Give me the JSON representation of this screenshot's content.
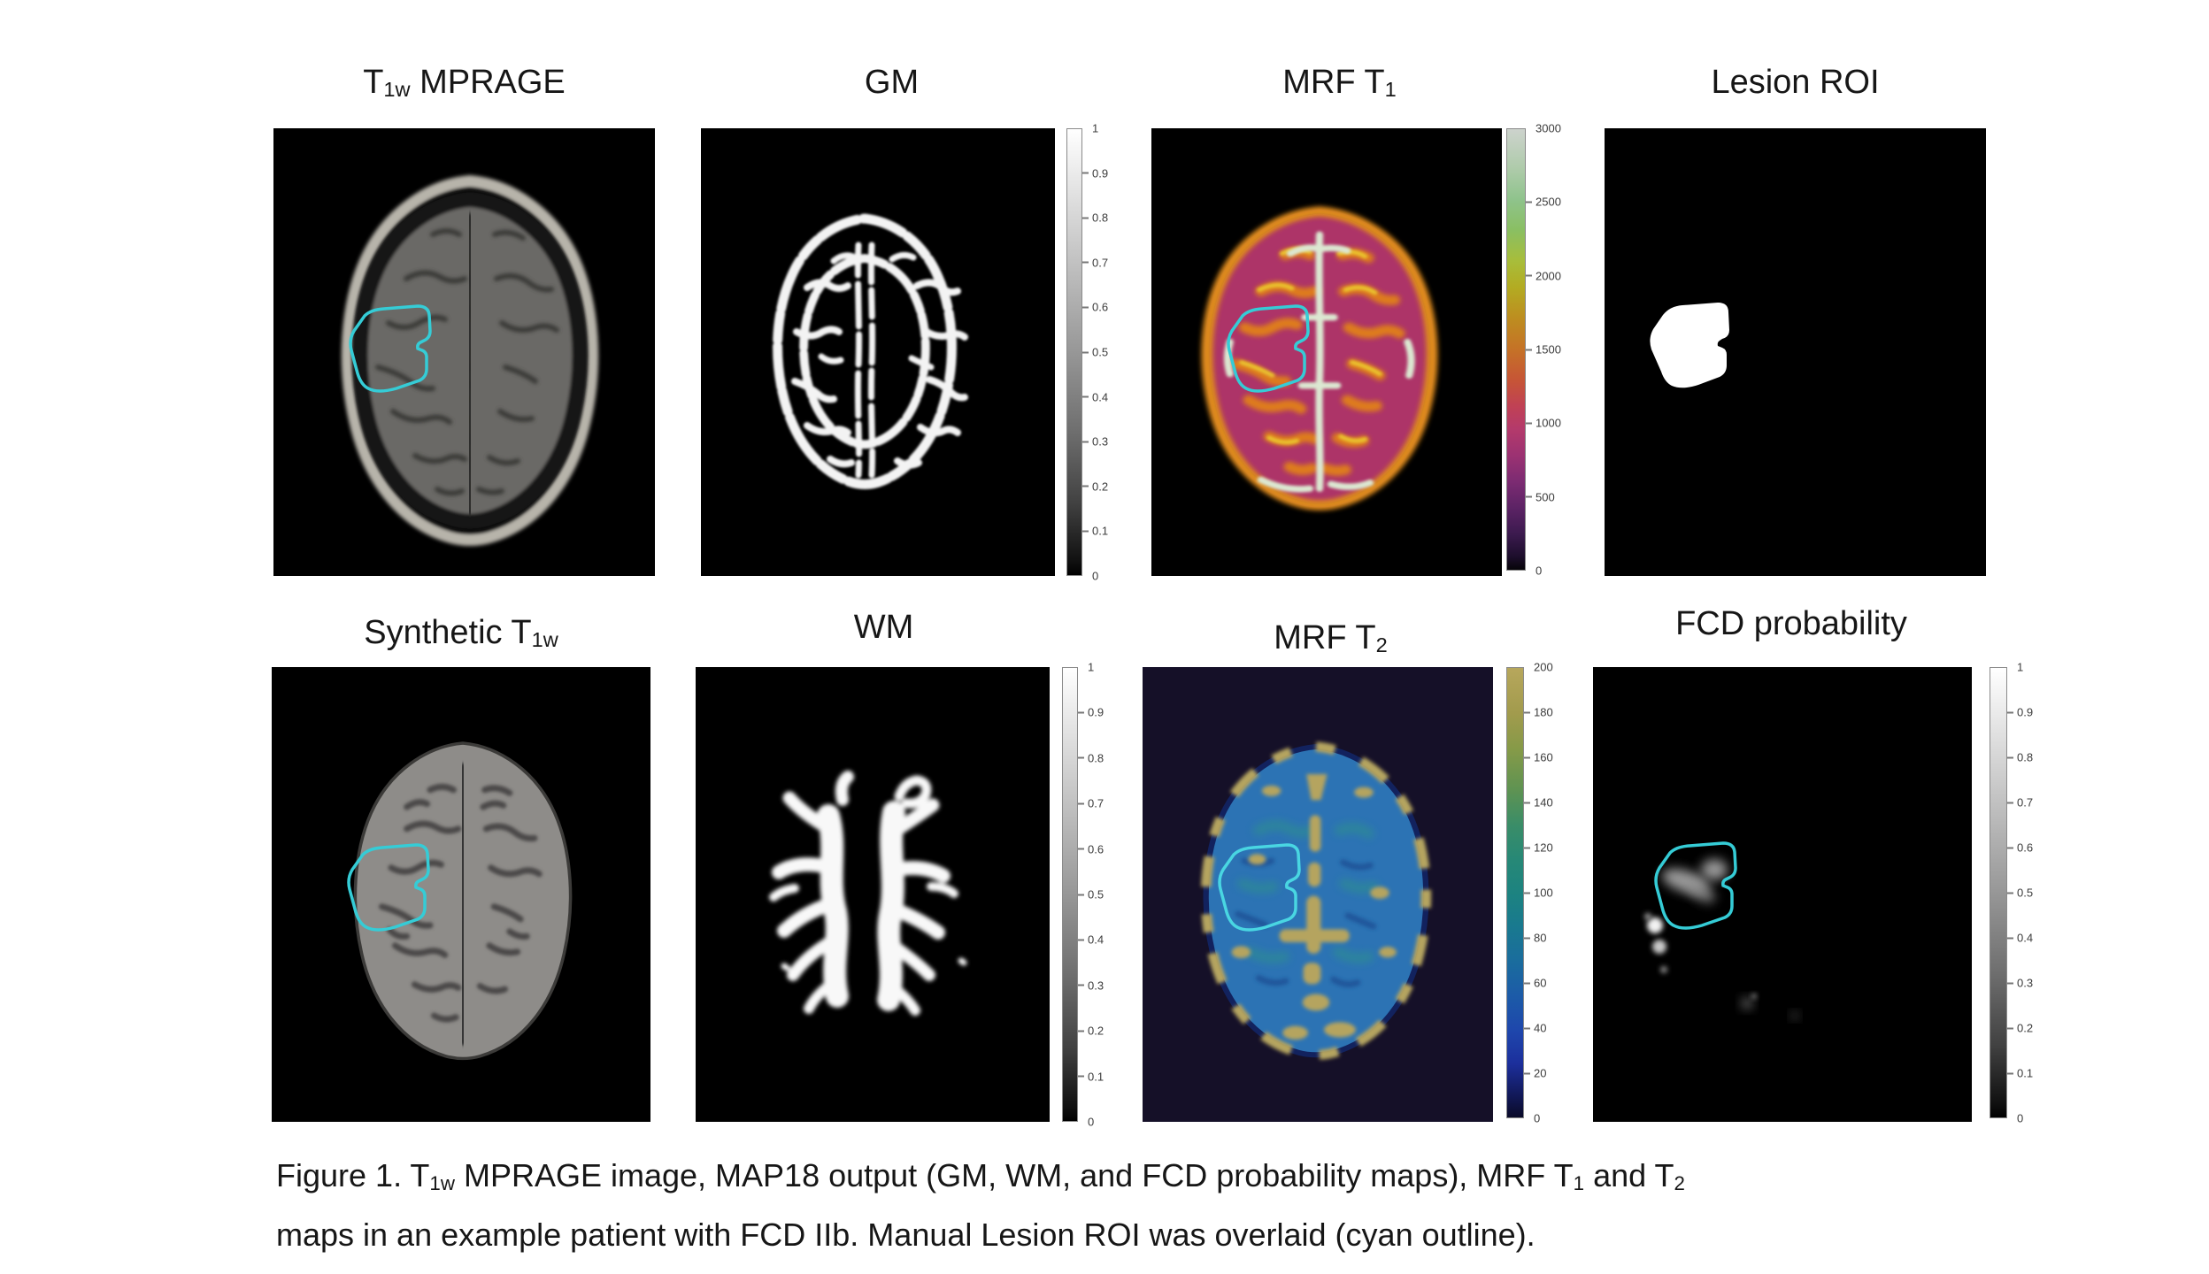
{
  "figure": {
    "caption": {
      "line1": [
        {
          "t": "Figure 1. T"
        },
        {
          "sub": "1w"
        },
        {
          "t": " MPRAGE image, MAP18 output (GM, WM, and FCD probability maps), MRF T"
        },
        {
          "sub": "1"
        },
        {
          "t": " and T"
        },
        {
          "sub": "2"
        }
      ],
      "line2": [
        {
          "t": "maps in an example patient with FCD IIb. Manual Lesion ROI was overlaid (cyan outline)."
        }
      ]
    },
    "panels": [
      {
        "id": "t1w-mprage",
        "title": [
          {
            "t": "T"
          },
          {
            "sub": "1w"
          },
          {
            "t": " MPRAGE"
          }
        ]
      },
      {
        "id": "gm",
        "title": [
          {
            "t": "GM"
          }
        ]
      },
      {
        "id": "mrf-t1",
        "title": [
          {
            "t": "MRF T"
          },
          {
            "sub": "1"
          }
        ]
      },
      {
        "id": "lesion-roi",
        "title": [
          {
            "t": "Lesion ROI"
          }
        ]
      },
      {
        "id": "synthetic-t1w",
        "title": [
          {
            "t": "Synthetic T"
          },
          {
            "sub": "1w"
          }
        ]
      },
      {
        "id": "wm",
        "title": [
          {
            "t": "WM"
          }
        ]
      },
      {
        "id": "mrf-t2",
        "title": [
          {
            "t": "MRF T"
          },
          {
            "sub": "2"
          }
        ]
      },
      {
        "id": "fcd-probability",
        "title": [
          {
            "t": "FCD probability"
          }
        ]
      }
    ],
    "colorbars": {
      "unit01": {
        "range": [
          0,
          1
        ],
        "ticks": [
          "1",
          "0.9",
          "0.8",
          "0.7",
          "0.6",
          "0.5",
          "0.4",
          "0.3",
          "0.2",
          "0.1",
          "0"
        ]
      },
      "t1": {
        "range": [
          0,
          3000
        ],
        "ticks": [
          "3000",
          "2500",
          "2000",
          "1500",
          "1000",
          "500",
          "0"
        ]
      },
      "t2": {
        "range": [
          0,
          200
        ],
        "ticks": [
          "200",
          "180",
          "160",
          "140",
          "120",
          "100",
          "80",
          "60",
          "40",
          "20",
          "0"
        ]
      }
    },
    "colors": {
      "roi_cyan": "#35ccd6",
      "lesion_white": "#ffffff",
      "panel_black": "#000000",
      "t2_background": "#151028",
      "t1_wm_magenta": "#ad3468",
      "t1_gm_orange": "#de7c1c",
      "t2_brain_blue": "#2c73b4",
      "t2_csf_tan": "#b5a45f"
    }
  }
}
